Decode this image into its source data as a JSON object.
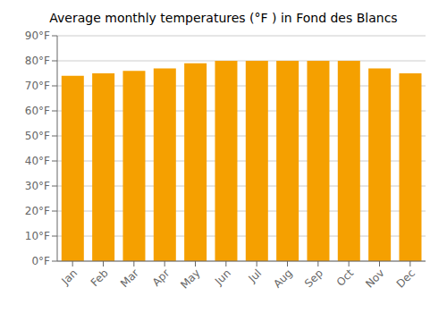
{
  "chart_data": {
    "type": "bar",
    "title": "Average monthly temperatures (°F ) in Fond des Blancs",
    "categories": [
      "Jan",
      "Feb",
      "Mar",
      "Apr",
      "May",
      "Jun",
      "Jul",
      "Aug",
      "Sep",
      "Oct",
      "Nov",
      "Dec"
    ],
    "values": [
      74,
      75,
      76,
      77,
      79,
      80,
      80,
      80,
      80,
      80,
      77,
      75
    ],
    "color": "#F5A000",
    "ylim": [
      0,
      90
    ],
    "yticks": [
      {
        "value": 0,
        "label": "0°F"
      },
      {
        "value": 10,
        "label": "10°F"
      },
      {
        "value": 20,
        "label": "20°F"
      },
      {
        "value": 30,
        "label": "30°F"
      },
      {
        "value": 40,
        "label": "40°F"
      },
      {
        "value": 50,
        "label": "50°F"
      },
      {
        "value": 60,
        "label": "60°F"
      },
      {
        "value": 70,
        "label": "70°F"
      },
      {
        "value": 80,
        "label": "80°F"
      },
      {
        "value": 90,
        "label": "90°F"
      }
    ],
    "grid": true
  }
}
